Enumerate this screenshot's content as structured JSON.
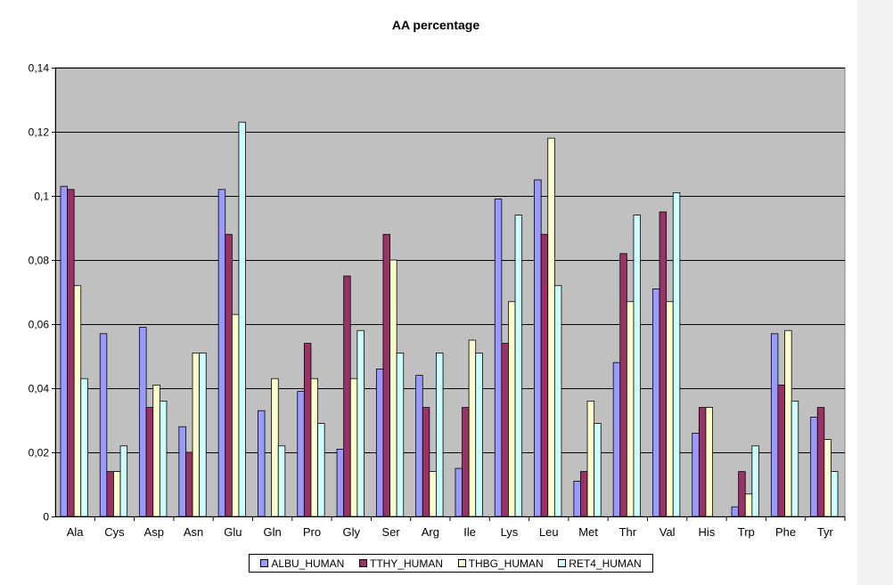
{
  "chart_data": {
    "type": "bar",
    "title": "AA percentage",
    "xlabel": "",
    "ylabel": "",
    "ylim": [
      0,
      0.14
    ],
    "yticks": [
      "0",
      "0,02",
      "0,04",
      "0,06",
      "0,08",
      "0,1",
      "0,12",
      "0,14"
    ],
    "grid": true,
    "legend_position": "bottom",
    "categories": [
      "Ala",
      "Cys",
      "Asp",
      "Asn",
      "Glu",
      "Gln",
      "Pro",
      "Gly",
      "Ser",
      "Arg",
      "Ile",
      "Lys",
      "Leu",
      "Met",
      "Thr",
      "Val",
      "His",
      "Trp",
      "Phe",
      "Tyr"
    ],
    "series": [
      {
        "name": "ALBU_HUMAN",
        "color": "#9999ff",
        "values": [
          0.103,
          0.057,
          0.059,
          0.028,
          0.102,
          0.033,
          0.039,
          0.021,
          0.046,
          0.044,
          0.015,
          0.099,
          0.105,
          0.011,
          0.048,
          0.071,
          0.026,
          0.003,
          0.057,
          0.031
        ]
      },
      {
        "name": "TTHY_HUMAN",
        "color": "#993366",
        "values": [
          0.102,
          0.014,
          0.034,
          0.02,
          0.088,
          0.0,
          0.054,
          0.075,
          0.088,
          0.034,
          0.034,
          0.054,
          0.088,
          0.014,
          0.082,
          0.095,
          0.034,
          0.014,
          0.041,
          0.034
        ]
      },
      {
        "name": "THBG_HUMAN",
        "color": "#ffffcc",
        "values": [
          0.072,
          0.014,
          0.041,
          0.051,
          0.063,
          0.043,
          0.043,
          0.043,
          0.08,
          0.014,
          0.055,
          0.067,
          0.118,
          0.036,
          0.067,
          0.067,
          0.034,
          0.007,
          0.058,
          0.024
        ]
      },
      {
        "name": "RET4_HUMAN",
        "color": "#ccffff",
        "values": [
          0.043,
          0.022,
          0.036,
          0.051,
          0.123,
          0.022,
          0.029,
          0.058,
          0.051,
          0.051,
          0.051,
          0.094,
          0.072,
          0.029,
          0.094,
          0.101,
          0.0,
          0.022,
          0.036,
          0.014
        ]
      }
    ],
    "plot_background": "#c0c0c0"
  }
}
